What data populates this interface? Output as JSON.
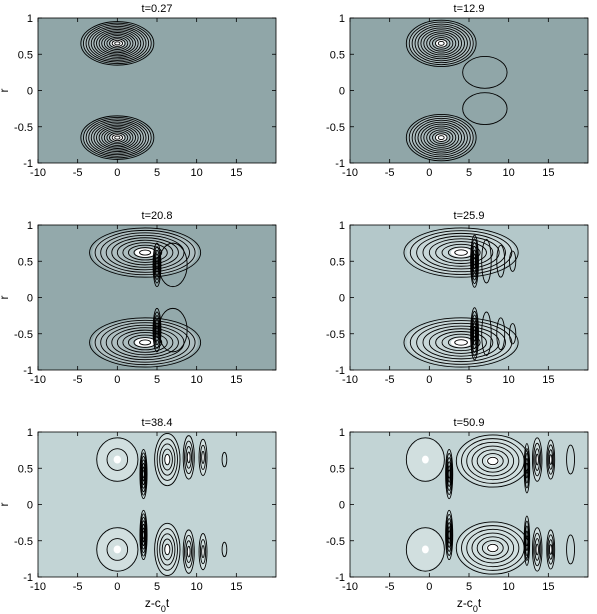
{
  "chart_data": [
    {
      "type": "contour",
      "title": "t=0.27",
      "xlabel": "",
      "ylabel": "r",
      "xlim": [
        -10,
        20
      ],
      "ylim": [
        -1,
        1
      ],
      "xticks": [
        "-10",
        "-5",
        "0",
        "5",
        "10",
        "15"
      ],
      "yticks": [
        "-1",
        "-0.5",
        "0",
        "0.5",
        "1"
      ],
      "background": "#90a6a8",
      "structures": [
        {
          "kind": "vortex",
          "z": 0.0,
          "r": 0.65,
          "sz": 4.6,
          "sr": 0.3,
          "levels": 14
        },
        {
          "kind": "vortex",
          "z": 0.0,
          "r": -0.65,
          "sz": 4.6,
          "sr": 0.3,
          "levels": 14
        }
      ]
    },
    {
      "type": "contour",
      "title": "t=12.9",
      "xlabel": "",
      "ylabel": "",
      "xlim": [
        -10,
        20
      ],
      "ylim": [
        -1,
        1
      ],
      "xticks": [
        "-10",
        "-5",
        "0",
        "5",
        "10",
        "15"
      ],
      "yticks": [
        "-1",
        "-0.5",
        "0",
        "0.5",
        "1"
      ],
      "background": "#90a6a8",
      "structures": [
        {
          "kind": "vortex",
          "z": 1.5,
          "r": 0.65,
          "sz": 4.4,
          "sr": 0.32,
          "levels": 12
        },
        {
          "kind": "vortex",
          "z": 1.5,
          "r": -0.65,
          "sz": 4.4,
          "sr": 0.32,
          "levels": 12
        },
        {
          "kind": "lobe",
          "z": 7.0,
          "r": 0.25,
          "sz": 2.8,
          "sr": 0.22
        },
        {
          "kind": "lobe",
          "z": 7.0,
          "r": -0.25,
          "sz": 2.8,
          "sr": 0.22
        }
      ]
    },
    {
      "type": "contour",
      "title": "t=20.8",
      "xlabel": "",
      "ylabel": "r",
      "xlim": [
        -10,
        20
      ],
      "ylim": [
        -1,
        1
      ],
      "xticks": [
        "-10",
        "-5",
        "0",
        "5",
        "10",
        "15"
      ],
      "yticks": [
        "-1",
        "-0.5",
        "0",
        "0.5",
        "1"
      ],
      "background": "#93a9ab",
      "structures": [
        {
          "kind": "vortex",
          "z": 3.5,
          "r": 0.62,
          "sz": 7.0,
          "sr": 0.34,
          "levels": 10
        },
        {
          "kind": "vortex",
          "z": 3.5,
          "r": -0.62,
          "sz": 7.0,
          "sr": 0.34,
          "levels": 10
        },
        {
          "kind": "band",
          "z": 5.0,
          "r": 0.45,
          "sz": 0.5,
          "sr": 0.3,
          "levels": 6
        },
        {
          "kind": "band",
          "z": 5.0,
          "r": -0.45,
          "sz": 0.5,
          "sr": 0.3,
          "levels": 6
        },
        {
          "kind": "lobe",
          "z": 7.0,
          "r": 0.45,
          "sz": 1.8,
          "sr": 0.3
        },
        {
          "kind": "lobe",
          "z": 7.0,
          "r": -0.45,
          "sz": 1.8,
          "sr": 0.3
        }
      ]
    },
    {
      "type": "contour",
      "title": "t=25.9",
      "xlabel": "",
      "ylabel": "",
      "xlim": [
        -10,
        20
      ],
      "ylim": [
        -1,
        1
      ],
      "xticks": [
        "-10",
        "-5",
        "0",
        "5",
        "10",
        "15"
      ],
      "yticks": [
        "-1",
        "-0.5",
        "0",
        "0.5",
        "1"
      ],
      "background": "#b4c8ca",
      "structures": [
        {
          "kind": "vortex",
          "z": 4.0,
          "r": 0.62,
          "sz": 7.2,
          "sr": 0.34,
          "levels": 9
        },
        {
          "kind": "vortex",
          "z": 4.0,
          "r": -0.62,
          "sz": 7.2,
          "sr": 0.34,
          "levels": 9
        },
        {
          "kind": "band",
          "z": 5.7,
          "r": 0.5,
          "sz": 0.5,
          "sr": 0.36,
          "levels": 7
        },
        {
          "kind": "band",
          "z": 5.7,
          "r": -0.5,
          "sz": 0.5,
          "sr": 0.36,
          "levels": 7
        },
        {
          "kind": "lobe",
          "z": 7.2,
          "r": 0.5,
          "sz": 0.6,
          "sr": 0.3
        },
        {
          "kind": "lobe",
          "z": 7.2,
          "r": -0.5,
          "sz": 0.6,
          "sr": 0.3
        },
        {
          "kind": "lobe",
          "z": 9.0,
          "r": 0.5,
          "sz": 0.5,
          "sr": 0.22
        },
        {
          "kind": "lobe",
          "z": 9.0,
          "r": -0.5,
          "sz": 0.5,
          "sr": 0.22
        },
        {
          "kind": "lobe",
          "z": 10.5,
          "r": 0.5,
          "sz": 0.4,
          "sr": 0.14
        },
        {
          "kind": "lobe",
          "z": 10.5,
          "r": -0.5,
          "sz": 0.4,
          "sr": 0.14
        }
      ]
    },
    {
      "type": "contour",
      "title": "t=38.4",
      "xlabel": "z-c0t",
      "ylabel": "r",
      "xlim": [
        -10,
        20
      ],
      "ylim": [
        -1,
        1
      ],
      "xticks": [
        "-10",
        "-5",
        "0",
        "5",
        "10",
        "15"
      ],
      "yticks": [
        "-1",
        "-0.5",
        "0",
        "0.5",
        "1"
      ],
      "background": "#c2d4d5",
      "structures": [
        {
          "kind": "vortex",
          "z": 0.0,
          "r": 0.62,
          "sz": 2.6,
          "sr": 0.3,
          "levels": 2
        },
        {
          "kind": "vortex",
          "z": 0.0,
          "r": -0.62,
          "sz": 2.6,
          "sr": 0.3,
          "levels": 2
        },
        {
          "kind": "band",
          "z": 3.3,
          "r": 0.42,
          "sz": 0.45,
          "sr": 0.34,
          "levels": 7
        },
        {
          "kind": "band",
          "z": 3.3,
          "r": -0.42,
          "sz": 0.45,
          "sr": 0.34,
          "levels": 7
        },
        {
          "kind": "vortex",
          "z": 6.3,
          "r": 0.62,
          "sz": 1.6,
          "sr": 0.36,
          "levels": 5
        },
        {
          "kind": "vortex",
          "z": 6.3,
          "r": -0.62,
          "sz": 1.6,
          "sr": 0.36,
          "levels": 5
        },
        {
          "kind": "vortex",
          "z": 9.0,
          "r": 0.65,
          "sz": 0.7,
          "sr": 0.3,
          "levels": 4
        },
        {
          "kind": "vortex",
          "z": 9.0,
          "r": -0.65,
          "sz": 0.7,
          "sr": 0.3,
          "levels": 4
        },
        {
          "kind": "vortex",
          "z": 10.8,
          "r": 0.65,
          "sz": 0.5,
          "sr": 0.25,
          "levels": 3
        },
        {
          "kind": "vortex",
          "z": 10.8,
          "r": -0.65,
          "sz": 0.5,
          "sr": 0.25,
          "levels": 3
        },
        {
          "kind": "lobe",
          "z": 13.5,
          "r": 0.62,
          "sz": 0.3,
          "sr": 0.1
        },
        {
          "kind": "lobe",
          "z": 13.5,
          "r": -0.62,
          "sz": 0.3,
          "sr": 0.1
        }
      ]
    },
    {
      "type": "contour",
      "title": "t=50.9",
      "xlabel": "z-c0t",
      "ylabel": "",
      "xlim": [
        -10,
        20
      ],
      "ylim": [
        -1,
        1
      ],
      "xticks": [
        "-10",
        "-5",
        "0",
        "5",
        "10",
        "15"
      ],
      "yticks": [
        "-1",
        "-0.5",
        "0",
        "0.5",
        "1"
      ],
      "background": "#c2d4d5",
      "structures": [
        {
          "kind": "vortex",
          "z": -0.5,
          "r": 0.62,
          "sz": 2.4,
          "sr": 0.3,
          "levels": 1
        },
        {
          "kind": "vortex",
          "z": -0.5,
          "r": -0.62,
          "sz": 2.4,
          "sr": 0.3,
          "levels": 1
        },
        {
          "kind": "band",
          "z": 2.5,
          "r": 0.42,
          "sz": 0.45,
          "sr": 0.34,
          "levels": 6
        },
        {
          "kind": "band",
          "z": 2.5,
          "r": -0.42,
          "sz": 0.45,
          "sr": 0.34,
          "levels": 6
        },
        {
          "kind": "vortex",
          "z": 8.0,
          "r": 0.6,
          "sz": 4.6,
          "sr": 0.36,
          "levels": 7
        },
        {
          "kind": "vortex",
          "z": 8.0,
          "r": -0.6,
          "sz": 4.6,
          "sr": 0.36,
          "levels": 7
        },
        {
          "kind": "band",
          "z": 12.3,
          "r": 0.5,
          "sz": 0.35,
          "sr": 0.34,
          "levels": 5
        },
        {
          "kind": "band",
          "z": 12.3,
          "r": -0.5,
          "sz": 0.35,
          "sr": 0.34,
          "levels": 5
        },
        {
          "kind": "vortex",
          "z": 13.6,
          "r": 0.62,
          "sz": 0.6,
          "sr": 0.3,
          "levels": 4
        },
        {
          "kind": "vortex",
          "z": 13.6,
          "r": -0.62,
          "sz": 0.6,
          "sr": 0.3,
          "levels": 4
        },
        {
          "kind": "vortex",
          "z": 15.3,
          "r": 0.62,
          "sz": 0.5,
          "sr": 0.27,
          "levels": 4
        },
        {
          "kind": "vortex",
          "z": 15.3,
          "r": -0.62,
          "sz": 0.5,
          "sr": 0.27,
          "levels": 4
        },
        {
          "kind": "lobe",
          "z": 17.8,
          "r": 0.62,
          "sz": 0.5,
          "sr": 0.2
        },
        {
          "kind": "lobe",
          "z": 17.8,
          "r": -0.62,
          "sz": 0.5,
          "sr": 0.2
        }
      ]
    }
  ]
}
